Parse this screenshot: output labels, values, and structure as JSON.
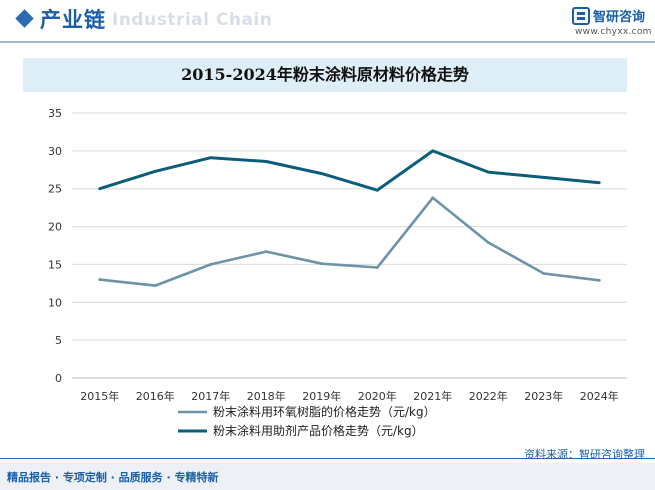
{
  "header": {
    "title": "产业链",
    "watermark": "Industrial Chain",
    "brand_name": "智研咨询",
    "brand_url": "www.chyxx.com"
  },
  "chart_data": {
    "type": "line",
    "title": "2015-2024年粉末涂料原材料价格走势",
    "categories": [
      "2015年",
      "2016年",
      "2017年",
      "2018年",
      "2019年",
      "2020年",
      "2021年",
      "2022年",
      "2023年",
      "2024年"
    ],
    "series": [
      {
        "name": "粉末涂料用环氧树脂的价格走势（元/kg）",
        "color": "#6c94a6",
        "values": [
          13.0,
          12.2,
          15.0,
          16.7,
          15.1,
          14.6,
          23.8,
          17.9,
          13.8,
          12.9
        ]
      },
      {
        "name": "粉末涂料用助剂产品价格走势（元/kg）",
        "color": "#0c5d7a",
        "values": [
          25.0,
          27.3,
          29.1,
          28.6,
          27.0,
          24.8,
          30.0,
          27.2,
          26.5,
          25.8
        ]
      }
    ],
    "ylim": [
      0,
      35
    ],
    "yticks": [
      0,
      5,
      10,
      15,
      20,
      25,
      30,
      35
    ],
    "grid": true,
    "legend_position": "bottom"
  },
  "footer": {
    "source": "资料来源：智研咨询整理",
    "slogan": "精品报告 · 专项定制 · 品质服务 · 专精特新"
  }
}
